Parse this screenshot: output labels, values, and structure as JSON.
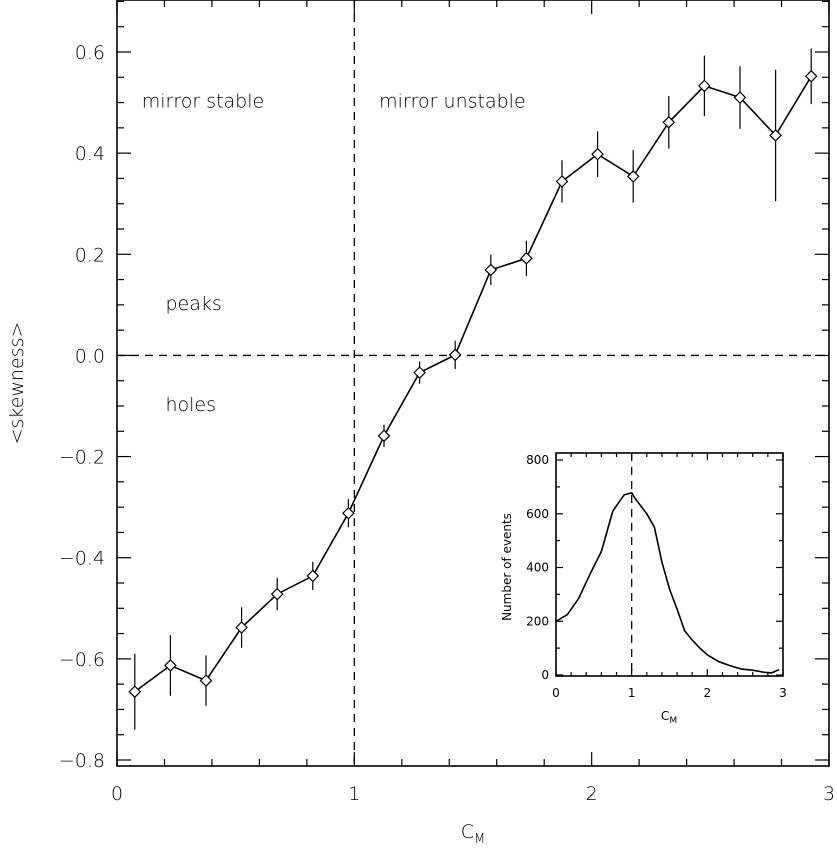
{
  "chart_data": [
    {
      "type": "line",
      "panel": "main",
      "xlabel": "C",
      "xlabel_sub": "M",
      "ylabel": "<skewness>",
      "xlim": [
        0,
        3
      ],
      "ylim": [
        -0.8,
        0.7
      ],
      "xticks": [
        0,
        1,
        2,
        3
      ],
      "xtick_labels": [
        "0",
        "1",
        "2",
        "3"
      ],
      "yticks": [
        -0.8,
        -0.6,
        -0.4,
        -0.2,
        0.0,
        0.2,
        0.4,
        0.6
      ],
      "ytick_labels": [
        "−0.8",
        "−0.6",
        "−0.4",
        "−0.2",
        "0.0",
        "0.2",
        "0.4",
        "0.6"
      ],
      "x": [
        0.075,
        0.225,
        0.375,
        0.525,
        0.675,
        0.825,
        0.975,
        1.125,
        1.275,
        1.425,
        1.575,
        1.725,
        1.875,
        2.025,
        2.175,
        2.325,
        2.475,
        2.625,
        2.775,
        2.925
      ],
      "y": [
        -0.665,
        -0.613,
        -0.643,
        -0.538,
        -0.472,
        -0.436,
        -0.312,
        -0.159,
        -0.034,
        0.001,
        0.169,
        0.192,
        0.344,
        0.398,
        0.354,
        0.461,
        0.533,
        0.51,
        0.435,
        0.552
      ],
      "err": [
        0.075,
        0.06,
        0.05,
        0.04,
        0.032,
        0.028,
        0.028,
        0.022,
        0.022,
        0.028,
        0.03,
        0.035,
        0.042,
        0.045,
        0.052,
        0.052,
        0.06,
        0.062,
        0.13,
        0.055
      ],
      "marker": "diamond",
      "ref_lines": [
        {
          "axis": "x",
          "value": 1
        },
        {
          "axis": "y",
          "value": 0
        }
      ],
      "annotations": [
        {
          "text": "mirror stable",
          "x": 0.1,
          "y": 0.5
        },
        {
          "text": "mirror unstable",
          "x": 1.1,
          "y": 0.5
        },
        {
          "text": "peaks",
          "x": 0.2,
          "y": 0.1
        },
        {
          "text": "holes",
          "x": 0.2,
          "y": -0.1
        }
      ]
    },
    {
      "type": "line",
      "panel": "inset",
      "xlabel": "C",
      "xlabel_sub": "M",
      "ylabel": "Number of events",
      "xlim": [
        0,
        3
      ],
      "ylim": [
        0,
        800
      ],
      "xticks": [
        0,
        1,
        2,
        3
      ],
      "xtick_labels": [
        "0",
        "1",
        "2",
        "3"
      ],
      "yticks": [
        0,
        200,
        400,
        600,
        800
      ],
      "ytick_labels": [
        "0",
        "200",
        "400",
        "600",
        "800"
      ],
      "x": [
        0.0,
        0.15,
        0.3,
        0.45,
        0.6,
        0.75,
        0.9,
        1.0,
        1.05,
        1.2,
        1.3,
        1.4,
        1.5,
        1.6,
        1.7,
        1.8,
        1.9,
        2.0,
        2.15,
        2.3,
        2.45,
        2.6,
        2.75,
        2.85,
        2.95
      ],
      "y": [
        200,
        225,
        285,
        375,
        460,
        610,
        670,
        678,
        655,
        600,
        550,
        420,
        320,
        245,
        165,
        130,
        100,
        75,
        50,
        35,
        22,
        18,
        10,
        8,
        20
      ],
      "ref_lines": [
        {
          "axis": "x",
          "value": 1
        }
      ]
    }
  ]
}
